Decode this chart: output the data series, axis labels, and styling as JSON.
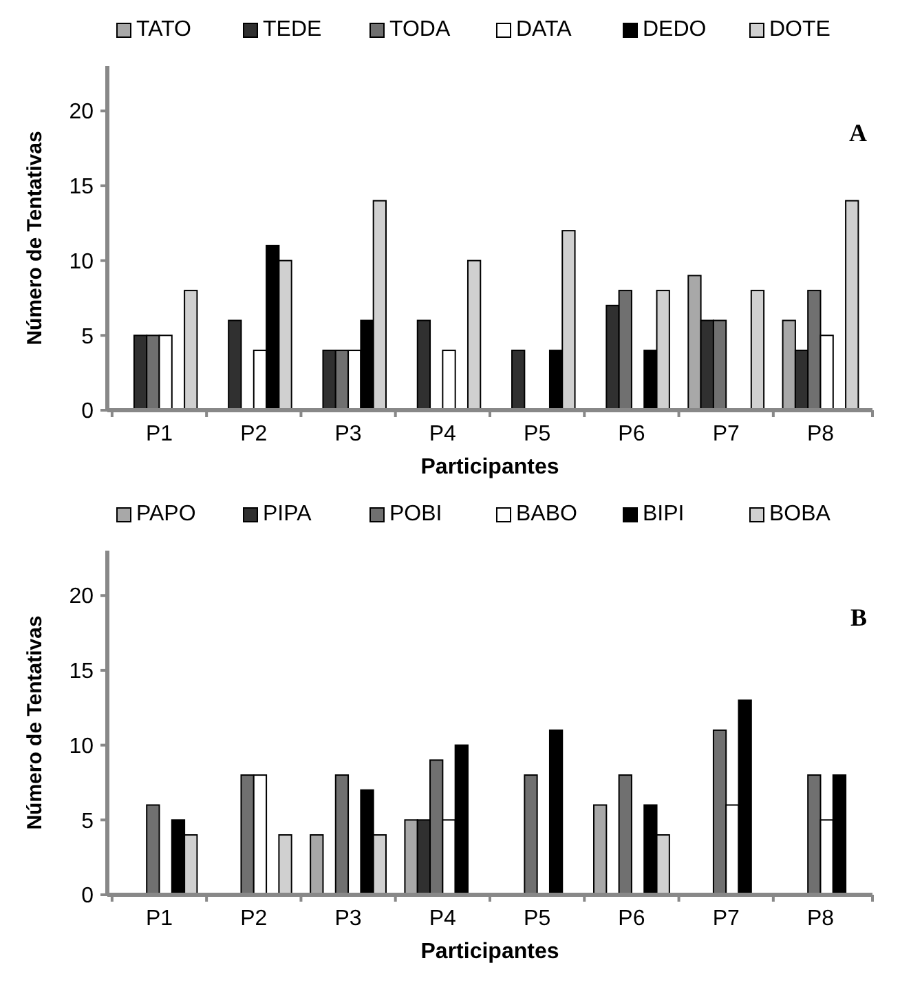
{
  "chart_data": [
    {
      "type": "bar",
      "xlabel": "Participantes",
      "ylabel": "Número de Tentativas",
      "annotations": [
        "A"
      ],
      "categories": [
        "P1",
        "P2",
        "P3",
        "P4",
        "P5",
        "P6",
        "P7",
        "P8"
      ],
      "series": [
        {
          "name": "TATO",
          "color": "#a8a8a8",
          "values": [
            null,
            null,
            null,
            null,
            null,
            null,
            9,
            6
          ]
        },
        {
          "name": "TEDE",
          "color": "#303030",
          "values": [
            5,
            6,
            4,
            6,
            4,
            7,
            6,
            4
          ]
        },
        {
          "name": "TODA",
          "color": "#707070",
          "values": [
            5,
            null,
            4,
            null,
            null,
            8,
            6,
            8
          ]
        },
        {
          "name": "DATA",
          "color": "#ffffff",
          "values": [
            5,
            4,
            4,
            4,
            null,
            null,
            null,
            5
          ]
        },
        {
          "name": "DEDO",
          "color": "#000000",
          "values": [
            null,
            11,
            6,
            null,
            4,
            4,
            null,
            null
          ]
        },
        {
          "name": "DOTE",
          "color": "#d0d0d0",
          "values": [
            8,
            10,
            14,
            10,
            12,
            8,
            8,
            14
          ]
        }
      ],
      "ylim": [
        0,
        23
      ],
      "yticks": [
        0,
        5,
        10,
        15,
        20
      ],
      "grid": false,
      "legend": "top"
    },
    {
      "type": "bar",
      "xlabel": "Participantes",
      "ylabel": "Número de Tentativas",
      "annotations": [
        "B"
      ],
      "categories": [
        "P1",
        "P2",
        "P3",
        "P4",
        "P5",
        "P6",
        "P7",
        "P8"
      ],
      "series": [
        {
          "name": "PAPO",
          "color": "#a8a8a8",
          "values": [
            null,
            null,
            4,
            5,
            null,
            6,
            null,
            null
          ]
        },
        {
          "name": "PIPA",
          "color": "#303030",
          "values": [
            null,
            null,
            null,
            5,
            null,
            null,
            null,
            null
          ]
        },
        {
          "name": "POBI",
          "color": "#707070",
          "values": [
            6,
            8,
            8,
            9,
            8,
            8,
            11,
            8
          ]
        },
        {
          "name": "BABO",
          "color": "#ffffff",
          "values": [
            null,
            8,
            null,
            5,
            null,
            null,
            6,
            5
          ]
        },
        {
          "name": "BIPI",
          "color": "#000000",
          "values": [
            5,
            null,
            7,
            10,
            11,
            6,
            13,
            8
          ]
        },
        {
          "name": "BOBA",
          "color": "#d0d0d0",
          "values": [
            4,
            4,
            4,
            null,
            null,
            4,
            null,
            null
          ]
        }
      ],
      "ylim": [
        0,
        23
      ],
      "yticks": [
        0,
        5,
        10,
        15,
        20
      ],
      "grid": false,
      "legend": "top"
    }
  ]
}
